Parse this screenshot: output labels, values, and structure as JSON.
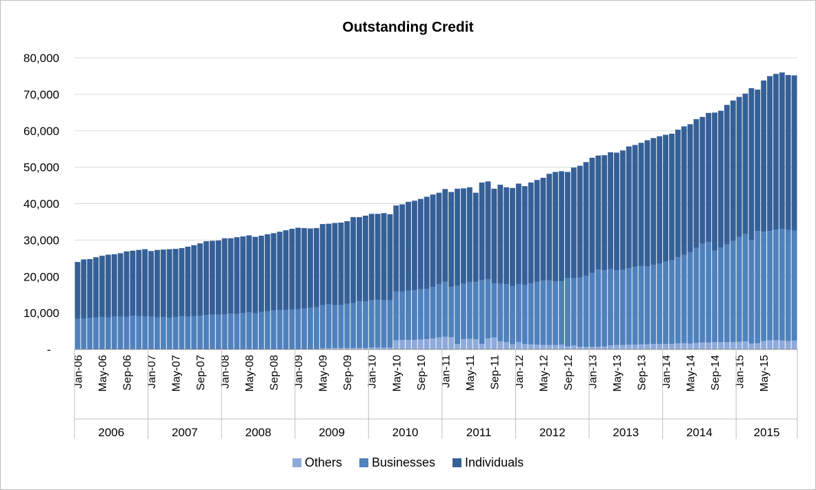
{
  "chart_data": {
    "type": "bar",
    "stacked": true,
    "title": "Outstanding Credit",
    "xlabel": "",
    "ylabel": "",
    "ylim": [
      0,
      80000
    ],
    "y_ticks": [
      "-",
      "10,000",
      "20,000",
      "30,000",
      "40,000",
      "50,000",
      "60,000",
      "70,000",
      "80,000"
    ],
    "grid": true,
    "legend_position": "bottom",
    "start_month": "Jan-06",
    "x_tick_labels": [
      "Jan-06",
      "May-06",
      "Sep-06",
      "Jan-07",
      "May-07",
      "Sep-07",
      "Jan-08",
      "May-08",
      "Sep-08",
      "Jan-09",
      "May-09",
      "Sep-09",
      "Jan-10",
      "May-10",
      "Sep-10",
      "Jan-11",
      "May-11",
      "Sep-11",
      "Jan-12",
      "May-12",
      "Sep-12",
      "Jan-13",
      "May-13",
      "Sep-13",
      "Jan-14",
      "May-14",
      "Sep-14",
      "Jan-15",
      "May-15"
    ],
    "year_groups": [
      "2006",
      "2007",
      "2008",
      "2009",
      "2010",
      "2011",
      "2012",
      "2013",
      "2014",
      "2015"
    ],
    "colors": {
      "Others": "#8eaadb",
      "Businesses": "#4f81bd",
      "Individuals": "#355f97"
    },
    "series": [
      {
        "name": "Others",
        "values": [
          0,
          0,
          0,
          0,
          0,
          0,
          0,
          0,
          0,
          0,
          0,
          0,
          0,
          0,
          0,
          0,
          0,
          0,
          0,
          0,
          0,
          0,
          0,
          0,
          0,
          0,
          0,
          0,
          0,
          0,
          0,
          0,
          0,
          0,
          0,
          0,
          0,
          0,
          0,
          0,
          300,
          300,
          400,
          400,
          400,
          400,
          400,
          400,
          500,
          500,
          500,
          500,
          2500,
          2600,
          2600,
          2600,
          2700,
          2800,
          3000,
          3300,
          3500,
          3400,
          1500,
          2800,
          2900,
          2800,
          1500,
          3000,
          3300,
          2200,
          2000,
          1400,
          2000,
          1500,
          1400,
          1300,
          1200,
          1200,
          1200,
          1300,
          800,
          1100,
          700,
          700,
          700,
          700,
          800,
          1100,
          1200,
          1200,
          1300,
          1300,
          1400,
          1400,
          1500,
          1500,
          1500,
          1500,
          1700,
          1700,
          1600,
          1800,
          1900,
          1900,
          2000,
          2000,
          2000,
          2000,
          2100,
          2200,
          1600,
          1700,
          2300,
          2500,
          2500,
          2400,
          2300,
          2400
        ]
      },
      {
        "name": "Businesses",
        "values": [
          8400,
          8500,
          8700,
          8800,
          8900,
          8800,
          9000,
          9000,
          8900,
          9200,
          9100,
          9000,
          9000,
          8800,
          8900,
          8700,
          8900,
          9100,
          9000,
          9100,
          9200,
          9400,
          9500,
          9500,
          9600,
          9800,
          9700,
          10000,
          10200,
          9900,
          10300,
          10500,
          10700,
          10800,
          10800,
          10900,
          11000,
          11200,
          11400,
          11600,
          11900,
          12100,
          11800,
          11800,
          12100,
          12300,
          12800,
          12700,
          13000,
          13100,
          13000,
          13000,
          13400,
          13300,
          13500,
          13600,
          13800,
          13800,
          14200,
          14600,
          15000,
          13800,
          16000,
          15200,
          15500,
          15700,
          17600,
          16300,
          14800,
          15800,
          15900,
          16000,
          15900,
          16200,
          16700,
          17200,
          17700,
          17800,
          17400,
          17400,
          18800,
          18400,
          19000,
          19500,
          20300,
          21200,
          20900,
          20900,
          20500,
          20600,
          21000,
          21400,
          21500,
          21400,
          21700,
          22000,
          22600,
          23000,
          23600,
          24300,
          25000,
          26100,
          27100,
          27600,
          25100,
          26000,
          26800,
          27800,
          28800,
          29500,
          28400,
          30800,
          30000,
          30000,
          30400,
          30700,
          30500,
          30200
        ]
      },
      {
        "name": "Individuals",
        "values": [
          15600,
          16200,
          16100,
          16500,
          16800,
          17200,
          17100,
          17400,
          18000,
          17900,
          18200,
          18500,
          18000,
          18500,
          18500,
          18800,
          18700,
          18700,
          19200,
          19500,
          19900,
          20300,
          20300,
          20400,
          20900,
          20700,
          21100,
          21000,
          21100,
          21000,
          20900,
          21100,
          21200,
          21500,
          21900,
          22200,
          22400,
          22100,
          21800,
          21700,
          22200,
          22100,
          22500,
          22600,
          22700,
          23600,
          23100,
          23600,
          23700,
          23600,
          23900,
          23600,
          23600,
          23900,
          24400,
          24600,
          24800,
          25300,
          25300,
          25100,
          25500,
          26000,
          26600,
          26200,
          26100,
          24500,
          26700,
          26800,
          26000,
          27200,
          26600,
          26900,
          27600,
          27100,
          27700,
          28000,
          28200,
          29200,
          30100,
          30200,
          29100,
          30400,
          30700,
          31200,
          31600,
          31300,
          31600,
          32100,
          32300,
          32800,
          33400,
          33400,
          33800,
          34600,
          34800,
          35000,
          34800,
          34700,
          35000,
          35200,
          35200,
          35300,
          34800,
          35400,
          37900,
          37500,
          38300,
          38500,
          38400,
          38500,
          41700,
          38800,
          41500,
          42500,
          42700,
          42900,
          42500,
          42600
        ]
      }
    ]
  }
}
